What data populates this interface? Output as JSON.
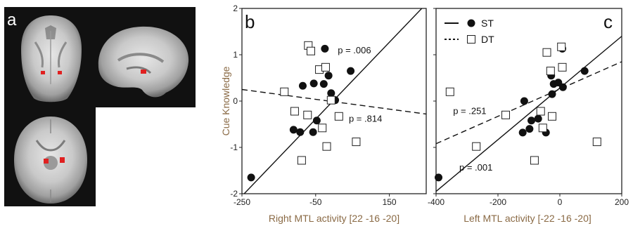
{
  "panel_a": {
    "letter": "a",
    "colors": {
      "background": "#111111",
      "activation": "#e02020"
    },
    "views": [
      "coronal-brain-slice",
      "sagittal-brain-slice",
      "axial-brain-slice"
    ]
  },
  "chart_data": [
    {
      "type": "scatter",
      "panel_letter": "b",
      "xlabel": "Right MTL activity [22 -16 -20]",
      "ylabel": "Cue Knowledge",
      "xlim": [
        -250,
        250
      ],
      "ylim": [
        -2,
        2
      ],
      "x_ticks": [
        -250,
        -50,
        150
      ],
      "y_ticks": [
        2,
        1,
        0,
        -1,
        -2
      ],
      "series": [
        {
          "marker": "filled-circle",
          "fit": "solid",
          "fit_line": [
            [
              -250,
              -2.05
            ],
            [
              250,
              2.1
            ]
          ],
          "points": [
            [
              -225,
              -1.65
            ],
            [
              -110,
              -0.62
            ],
            [
              -92,
              -0.67
            ],
            [
              -85,
              0.33
            ],
            [
              -55,
              0.38
            ],
            [
              -57,
              -0.67
            ],
            [
              -47,
              -0.42
            ],
            [
              -28,
              0.37
            ],
            [
              -25,
              1.13
            ],
            [
              -15,
              0.55
            ],
            [
              -8,
              0.17
            ],
            [
              3,
              0.02
            ],
            [
              45,
              0.65
            ]
          ]
        },
        {
          "marker": "open-square",
          "fit": "dashed",
          "fit_line": [
            [
              -250,
              0.25
            ],
            [
              250,
              -0.28
            ]
          ],
          "points": [
            [
              -135,
              0.2
            ],
            [
              -107,
              -0.22
            ],
            [
              -88,
              -1.28
            ],
            [
              -70,
              1.2
            ],
            [
              -63,
              1.08
            ],
            [
              -72,
              -0.3
            ],
            [
              -40,
              0.68
            ],
            [
              -32,
              -0.58
            ],
            [
              -23,
              0.73
            ],
            [
              -8,
              0.02
            ],
            [
              -20,
              -0.98
            ],
            [
              13,
              -0.33
            ],
            [
              60,
              -0.88
            ]
          ]
        }
      ],
      "annotations": [
        {
          "text": "p = .006",
          "x": 10,
          "y": 1.03
        },
        {
          "text": "p = .814",
          "x": 40,
          "y": -0.45
        }
      ]
    },
    {
      "type": "scatter",
      "panel_letter": "c",
      "xlabel": "Left MTL activity [-22 -16 -20]",
      "ylabel": "",
      "xlim": [
        -400,
        200
      ],
      "ylim": [
        -2,
        2
      ],
      "x_ticks": [
        -400,
        -200,
        0,
        200
      ],
      "legend": {
        "placement": "top-left",
        "entries": [
          {
            "line": "solid",
            "marker": "filled-circle",
            "label": "ST"
          },
          {
            "line": "dotted",
            "marker": "open-square",
            "label": "DT"
          }
        ]
      },
      "series": [
        {
          "label": "ST",
          "marker": "filled-circle",
          "fit": "solid",
          "fit_line": [
            [
              -400,
              -1.95
            ],
            [
              200,
              1.4
            ]
          ],
          "points": [
            [
              -392,
              -1.65
            ],
            [
              -115,
              0.0
            ],
            [
              -120,
              -0.68
            ],
            [
              -98,
              -0.6
            ],
            [
              -92,
              -0.42
            ],
            [
              -70,
              -0.38
            ],
            [
              -45,
              -0.68
            ],
            [
              -28,
              0.55
            ],
            [
              -25,
              0.15
            ],
            [
              -20,
              0.37
            ],
            [
              -5,
              0.4
            ],
            [
              8,
              1.13
            ],
            [
              10,
              0.3
            ],
            [
              80,
              0.65
            ]
          ]
        },
        {
          "label": "DT",
          "marker": "open-square",
          "fit": "dashed",
          "fit_line": [
            [
              -400,
              -0.92
            ],
            [
              200,
              0.85
            ]
          ],
          "points": [
            [
              -355,
              0.2
            ],
            [
              -270,
              -0.98
            ],
            [
              -175,
              -0.3
            ],
            [
              -82,
              -1.28
            ],
            [
              -62,
              -0.22
            ],
            [
              -55,
              -0.58
            ],
            [
              -42,
              1.05
            ],
            [
              -30,
              0.65
            ],
            [
              -25,
              -0.33
            ],
            [
              5,
              1.17
            ],
            [
              8,
              0.73
            ],
            [
              120,
              -0.88
            ]
          ]
        }
      ],
      "annotations": [
        {
          "text": "p = .251",
          "x": -345,
          "y": -0.28
        },
        {
          "text": "p = .001",
          "x": -325,
          "y": -1.5
        }
      ]
    }
  ]
}
